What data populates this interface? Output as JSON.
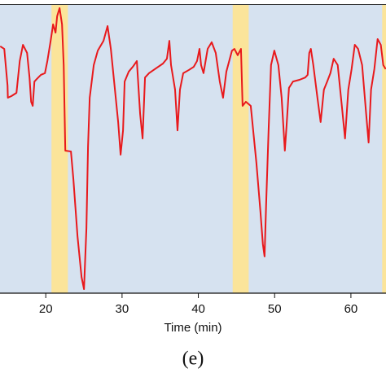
{
  "chart_data": {
    "type": "line",
    "xlabel": "Time (min)",
    "caption": "(e)",
    "xlim": [
      14,
      64.6
    ],
    "ylim": [
      0,
      100
    ],
    "xticks": [
      20,
      30,
      40,
      50,
      60
    ],
    "background": "#d6e2f0",
    "shaded_regions": {
      "color": "#fbe49a",
      "ranges": [
        [
          20.75,
          22.9
        ],
        [
          44.5,
          46.6
        ],
        [
          64.1,
          64.6
        ]
      ]
    },
    "series": [
      {
        "color": "#e8191c",
        "x": [
          14.03,
          14.56,
          14.99,
          15.03,
          15.52,
          16.16,
          16.59,
          17.01,
          17.55,
          17.87,
          18.08,
          18.29,
          18.51,
          18.83,
          19.36,
          19.89,
          20.21,
          20.64,
          20.96,
          21.28,
          21.49,
          21.81,
          22.13,
          22.35,
          22.56,
          23.3,
          23.62,
          24.16,
          24.69,
          25.01,
          25.33,
          25.54,
          25.76,
          26.29,
          26.82,
          27.57,
          28.1,
          28.53,
          28.96,
          29.49,
          29.81,
          30.13,
          30.34,
          30.87,
          31.41,
          31.94,
          32.37,
          32.69,
          33.01,
          33.54,
          34.29,
          35.35,
          35.88,
          36.2,
          36.42,
          36.95,
          37.27,
          37.59,
          38.02,
          38.76,
          39.4,
          39.83,
          40.15,
          40.36,
          40.68,
          41.22,
          41.75,
          42.28,
          42.81,
          43.24,
          43.67,
          44.41,
          44.73,
          45.16,
          45.59,
          45.8,
          46.23,
          46.87,
          47.61,
          48.14,
          48.46,
          48.68,
          48.89,
          49.21,
          49.53,
          49.96,
          50.49,
          50.92,
          51.34,
          51.56,
          51.88,
          52.41,
          53.26,
          54.01,
          54.33,
          54.54,
          54.75,
          55.07,
          55.61,
          56.03,
          56.46,
          56.89,
          57.31,
          57.74,
          58.27,
          58.81,
          59.23,
          59.66,
          60.09,
          60.51,
          60.94,
          61.47,
          62.0,
          62.32,
          62.64,
          63.07,
          63.5,
          63.92,
          64.24,
          64.56
        ],
        "values": [
          85.4,
          84.5,
          71.8,
          67.6,
          68.2,
          69.3,
          80.3,
          85.9,
          83.1,
          74.6,
          66.2,
          64.8,
          73.2,
          74.1,
          75.5,
          76.1,
          80.3,
          87.3,
          93.0,
          90.1,
          95.8,
          98.6,
          93.0,
          78.9,
          49.3,
          49.0,
          39.4,
          19.7,
          5.6,
          1.4,
          22.5,
          50.7,
          67.6,
          78.9,
          83.9,
          87.3,
          92.4,
          84.5,
          73.2,
          59.2,
          47.9,
          56.3,
          73.2,
          76.6,
          78.3,
          80.3,
          62.0,
          53.5,
          74.6,
          76.1,
          77.5,
          79.4,
          81.1,
          87.3,
          78.9,
          70.4,
          56.3,
          70.4,
          76.1,
          77.2,
          78.3,
          80.3,
          84.5,
          78.9,
          76.1,
          84.5,
          86.8,
          83.1,
          73.2,
          67.6,
          76.6,
          83.9,
          84.5,
          82.3,
          84.5,
          64.8,
          66.2,
          64.8,
          45.1,
          28.2,
          16.9,
          12.7,
          31.0,
          56.3,
          78.9,
          83.9,
          78.9,
          67.6,
          49.3,
          57.7,
          71.0,
          73.2,
          73.8,
          74.6,
          75.5,
          83.1,
          84.5,
          78.9,
          67.6,
          59.2,
          70.4,
          73.2,
          76.1,
          81.1,
          78.9,
          64.8,
          53.5,
          70.4,
          77.5,
          85.9,
          84.5,
          78.9,
          62.0,
          52.1,
          70.4,
          77.5,
          87.9,
          85.9,
          78.9,
          77.5
        ]
      }
    ]
  }
}
